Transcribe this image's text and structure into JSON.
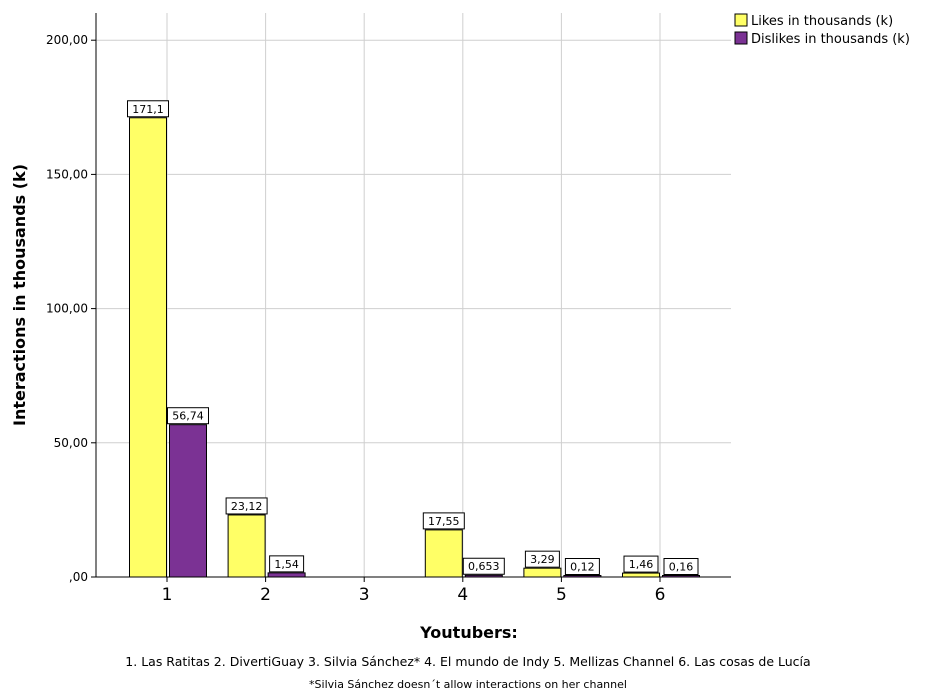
{
  "chart_data": {
    "type": "bar",
    "categories": [
      "1",
      "2",
      "3",
      "4",
      "5",
      "6"
    ],
    "series": [
      {
        "name": "Likes in thousands (k)",
        "values": [
          171.1,
          23.12,
          null,
          17.55,
          3.29,
          1.46
        ],
        "labels": [
          "171,1",
          "23,12",
          "",
          "17,55",
          "3,29",
          "1,46"
        ],
        "color": "#ffff66"
      },
      {
        "name": "Dislikes in thousands (k)",
        "values": [
          56.74,
          1.54,
          null,
          0.653,
          0.12,
          0.16
        ],
        "labels": [
          "56,74",
          "1,54",
          "",
          "0,653",
          "0,12",
          "0,16"
        ],
        "color": "#7b3294"
      }
    ],
    "xlabel": "Youtubers:",
    "ylabel": "Interactions in thousands (k)",
    "ylim": [
      0,
      200
    ],
    "y_ticks": [
      0,
      50,
      100,
      150,
      200
    ],
    "y_tick_labels": [
      ",00",
      "50,00",
      "100,00",
      "150,00",
      "200,00"
    ],
    "grid": true,
    "legend_position": "top-right"
  },
  "captions": {
    "main": "1. Las Ratitas  2. DivertiGuay  3. Silvia Sánchez*  4. El mundo de Indy  5. Mellizas Channel  6. Las cosas de Lucía",
    "note": "*Silvia Sánchez doesn´t allow interactions on her channel"
  }
}
